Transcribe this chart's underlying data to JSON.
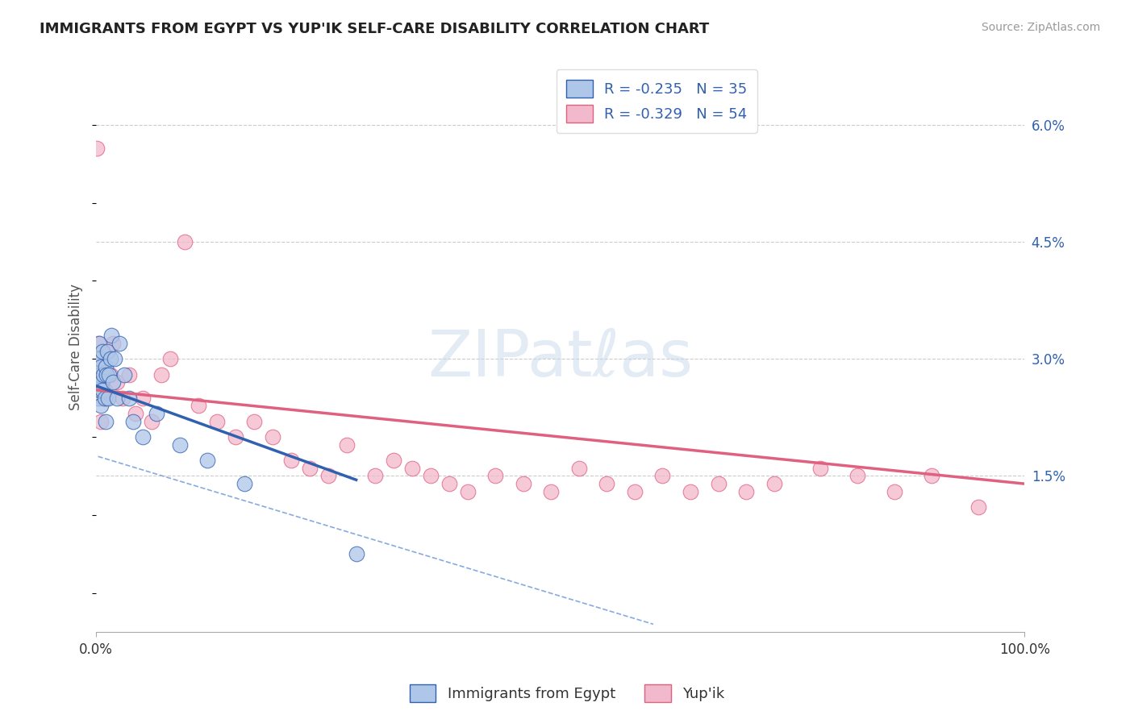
{
  "title": "IMMIGRANTS FROM EGYPT VS YUP'IK SELF-CARE DISABILITY CORRELATION CHART",
  "source": "Source: ZipAtlas.com",
  "ylabel": "Self-Care Disability",
  "legend_label_1": "Immigrants from Egypt",
  "legend_label_2": "Yup'ik",
  "r1": -0.235,
  "n1": 35,
  "r2": -0.329,
  "n2": 54,
  "color_blue": "#aec6e8",
  "color_pink": "#f2b8cb",
  "line_blue": "#3060b0",
  "line_pink": "#e06080",
  "bg_color": "#ffffff",
  "grid_color": "#cccccc",
  "xlim": [
    0.0,
    1.0
  ],
  "ylim": [
    -0.005,
    0.068
  ],
  "xticks": [
    0.0,
    1.0
  ],
  "xtick_labels": [
    "0.0%",
    "100.0%"
  ],
  "yticks": [
    0.015,
    0.03,
    0.045,
    0.06
  ],
  "ytick_labels": [
    "1.5%",
    "3.0%",
    "4.5%",
    "6.0%"
  ],
  "blue_points_x": [
    0.001,
    0.002,
    0.002,
    0.003,
    0.003,
    0.004,
    0.004,
    0.005,
    0.005,
    0.006,
    0.007,
    0.007,
    0.008,
    0.009,
    0.01,
    0.01,
    0.011,
    0.012,
    0.013,
    0.014,
    0.015,
    0.016,
    0.018,
    0.02,
    0.022,
    0.025,
    0.03,
    0.035,
    0.04,
    0.05,
    0.065,
    0.09,
    0.12,
    0.16,
    0.28
  ],
  "blue_points_y": [
    0.027,
    0.025,
    0.03,
    0.028,
    0.032,
    0.026,
    0.03,
    0.024,
    0.029,
    0.027,
    0.031,
    0.026,
    0.028,
    0.025,
    0.029,
    0.022,
    0.028,
    0.031,
    0.025,
    0.028,
    0.03,
    0.033,
    0.027,
    0.03,
    0.025,
    0.032,
    0.028,
    0.025,
    0.022,
    0.02,
    0.023,
    0.019,
    0.017,
    0.014,
    0.005
  ],
  "pink_points_x": [
    0.001,
    0.002,
    0.003,
    0.004,
    0.005,
    0.006,
    0.007,
    0.008,
    0.009,
    0.01,
    0.012,
    0.015,
    0.018,
    0.022,
    0.028,
    0.035,
    0.042,
    0.05,
    0.06,
    0.07,
    0.08,
    0.095,
    0.11,
    0.13,
    0.15,
    0.17,
    0.19,
    0.21,
    0.23,
    0.25,
    0.27,
    0.3,
    0.32,
    0.34,
    0.36,
    0.38,
    0.4,
    0.43,
    0.46,
    0.49,
    0.52,
    0.55,
    0.58,
    0.61,
    0.64,
    0.67,
    0.7,
    0.73,
    0.78,
    0.82,
    0.86,
    0.9,
    0.95,
    0.005
  ],
  "pink_points_y": [
    0.057,
    0.032,
    0.029,
    0.03,
    0.027,
    0.028,
    0.025,
    0.028,
    0.026,
    0.025,
    0.031,
    0.028,
    0.032,
    0.027,
    0.025,
    0.028,
    0.023,
    0.025,
    0.022,
    0.028,
    0.03,
    0.045,
    0.024,
    0.022,
    0.02,
    0.022,
    0.02,
    0.017,
    0.016,
    0.015,
    0.019,
    0.015,
    0.017,
    0.016,
    0.015,
    0.014,
    0.013,
    0.015,
    0.014,
    0.013,
    0.016,
    0.014,
    0.013,
    0.015,
    0.013,
    0.014,
    0.013,
    0.014,
    0.016,
    0.015,
    0.013,
    0.015,
    0.011,
    0.022
  ],
  "blue_line_x0": 0.001,
  "blue_line_x1": 0.28,
  "blue_line_y0": 0.0265,
  "blue_line_y1": 0.0145,
  "pink_line_x0": 0.001,
  "pink_line_x1": 1.0,
  "pink_line_y0": 0.026,
  "pink_line_y1": 0.014,
  "dashed_line_x0": 0.002,
  "dashed_line_x1": 0.6,
  "dashed_line_y0": 0.0175,
  "dashed_line_y1": -0.004
}
